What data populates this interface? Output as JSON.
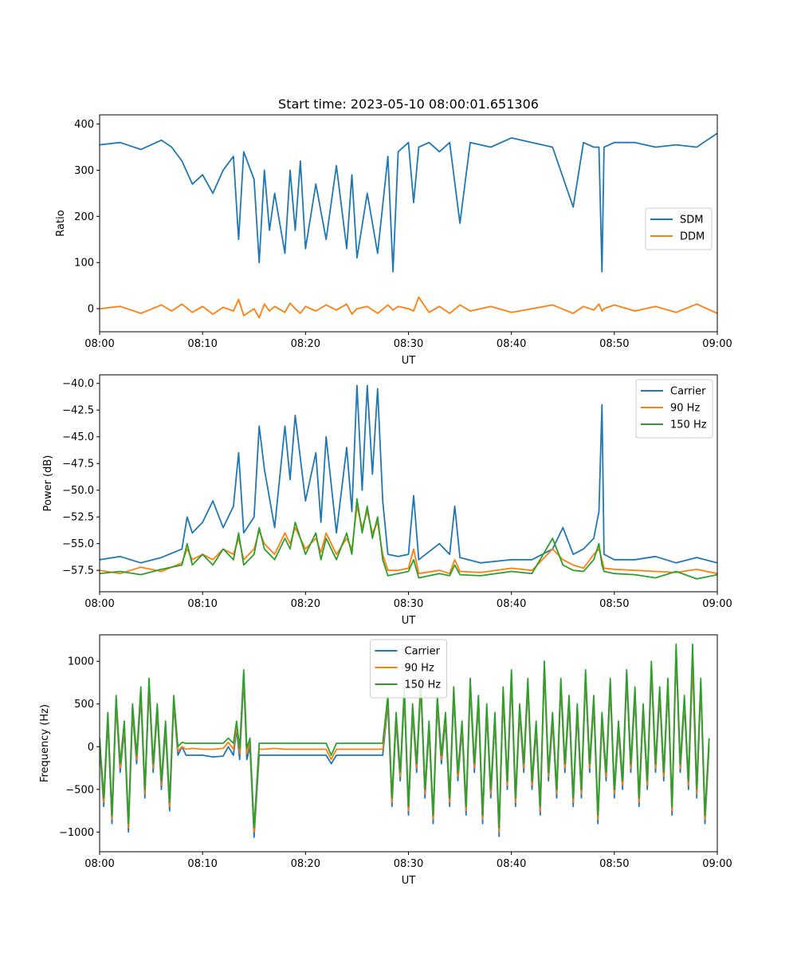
{
  "figure": {
    "title": "Start time: 2023-05-10 08:00:01.651306"
  },
  "chart_data": [
    {
      "type": "line",
      "xlabel": "UT",
      "ylabel": "Ratio",
      "x_range": [
        "08:00",
        "09:00"
      ],
      "x_ticks": [
        "08:00",
        "08:10",
        "08:20",
        "08:30",
        "08:40",
        "08:50",
        "09:00"
      ],
      "ylim": [
        -50,
        420
      ],
      "y_ticks": [
        0,
        100,
        200,
        300,
        400
      ],
      "y_tick_labels": [
        "0",
        "100",
        "200",
        "300",
        "400"
      ],
      "legend_position": "center-right",
      "grid": false,
      "x_minutes": [
        0,
        2,
        4,
        6,
        7,
        8,
        9,
        10,
        11,
        12,
        13,
        13.5,
        14,
        15,
        15.5,
        16,
        16.5,
        17,
        18,
        18.5,
        19,
        19.5,
        20,
        21,
        22,
        23,
        24,
        24.5,
        25,
        26,
        27,
        28,
        28.5,
        29,
        30,
        30.5,
        31,
        32,
        33,
        34,
        35,
        36,
        38,
        40,
        42,
        44,
        46,
        47,
        48,
        48.5,
        48.8,
        49,
        50,
        52,
        54,
        56,
        58,
        60
      ],
      "series": [
        {
          "name": "SDM",
          "color": "#1f77b4",
          "values": [
            355,
            360,
            345,
            365,
            350,
            320,
            270,
            290,
            250,
            300,
            330,
            150,
            340,
            280,
            100,
            300,
            170,
            250,
            120,
            300,
            170,
            320,
            130,
            270,
            150,
            310,
            130,
            290,
            110,
            250,
            120,
            330,
            80,
            340,
            360,
            230,
            350,
            360,
            340,
            360,
            185,
            360,
            350,
            370,
            360,
            350,
            220,
            360,
            350,
            350,
            80,
            350,
            360,
            360,
            350,
            355,
            350,
            380
          ]
        },
        {
          "name": "DDM",
          "color": "#ff7f0e",
          "values": [
            0,
            5,
            -10,
            8,
            -5,
            10,
            -8,
            5,
            -12,
            3,
            -5,
            20,
            -15,
            0,
            -20,
            10,
            -5,
            5,
            -8,
            12,
            0,
            -10,
            5,
            -5,
            8,
            -3,
            10,
            -12,
            0,
            5,
            -10,
            8,
            -3,
            5,
            0,
            -5,
            25,
            -8,
            5,
            -10,
            8,
            -5,
            5,
            -8,
            0,
            8,
            -10,
            5,
            -3,
            10,
            -5,
            0,
            8,
            -5,
            5,
            -8,
            10,
            -10
          ]
        }
      ]
    },
    {
      "type": "line",
      "xlabel": "UT",
      "ylabel": "Power (dB)",
      "x_range": [
        "08:00",
        "09:00"
      ],
      "x_ticks": [
        "08:00",
        "08:10",
        "08:20",
        "08:30",
        "08:40",
        "08:50",
        "09:00"
      ],
      "ylim": [
        -59.5,
        -39.2
      ],
      "y_ticks": [
        -40.0,
        -42.5,
        -45.0,
        -47.5,
        -50.0,
        -52.5,
        -55.0,
        -57.5
      ],
      "y_tick_labels": [
        "−40.0",
        "−42.5",
        "−45.0",
        "−47.5",
        "−50.0",
        "−52.5",
        "−55.0",
        "−57.5"
      ],
      "legend_position": "upper-right",
      "grid": false,
      "x_minutes": [
        0,
        2,
        4,
        6,
        8,
        8.5,
        9,
        10,
        11,
        12,
        13,
        13.5,
        14,
        15,
        15.5,
        16,
        17,
        18,
        18.5,
        19,
        20,
        21,
        21.5,
        22,
        23,
        24,
        24.5,
        25,
        25.5,
        26,
        26.5,
        27,
        27.5,
        28,
        29,
        30,
        30.5,
        31,
        33,
        34,
        34.5,
        35,
        37,
        40,
        42,
        44,
        45,
        46,
        47,
        48,
        48.5,
        48.8,
        49,
        50,
        52,
        54,
        56,
        58,
        60
      ],
      "series": [
        {
          "name": "Carrier",
          "color": "#1f77b4",
          "values": [
            -56.5,
            -56.2,
            -56.8,
            -56.3,
            -55.5,
            -52.5,
            -54.0,
            -53.0,
            -51.0,
            -53.5,
            -51.5,
            -46.5,
            -54.0,
            -52.5,
            -44.0,
            -48.0,
            -53.5,
            -44.0,
            -49.0,
            -43.0,
            -51.0,
            -46.5,
            -53.0,
            -45.0,
            -54.0,
            -46.0,
            -52.0,
            -40.2,
            -50.0,
            -40.2,
            -48.5,
            -40.5,
            -51.0,
            -56.0,
            -56.2,
            -56.0,
            -50.5,
            -56.5,
            -55.0,
            -56.0,
            -51.5,
            -56.3,
            -56.8,
            -56.5,
            -56.5,
            -55.5,
            -53.5,
            -56.0,
            -55.5,
            -54.5,
            -52.0,
            -42.0,
            -56.0,
            -56.5,
            -56.5,
            -56.2,
            -56.8,
            -56.3,
            -56.8
          ]
        },
        {
          "name": "90 Hz",
          "color": "#ff7f0e",
          "values": [
            -57.5,
            -57.8,
            -57.2,
            -57.6,
            -56.8,
            -55.5,
            -56.5,
            -56.0,
            -56.5,
            -55.5,
            -56.0,
            -54.5,
            -56.5,
            -55.5,
            -53.8,
            -55.0,
            -56.0,
            -54.0,
            -55.0,
            -53.5,
            -55.5,
            -54.5,
            -55.8,
            -54.0,
            -56.0,
            -54.5,
            -55.5,
            -51.5,
            -53.5,
            -52.0,
            -54.0,
            -53.0,
            -56.0,
            -57.5,
            -57.5,
            -57.3,
            -55.5,
            -57.8,
            -57.5,
            -57.8,
            -56.5,
            -57.6,
            -57.7,
            -57.3,
            -57.5,
            -55.5,
            -56.5,
            -57.0,
            -57.3,
            -56.0,
            -55.5,
            -56.5,
            -57.3,
            -57.4,
            -57.5,
            -57.6,
            -57.7,
            -57.4,
            -57.8
          ]
        },
        {
          "name": "150 Hz",
          "color": "#2ca02c",
          "values": [
            -57.8,
            -57.6,
            -57.9,
            -57.4,
            -57.0,
            -55.0,
            -57.0,
            -56.0,
            -57.0,
            -55.5,
            -56.5,
            -54.0,
            -57.0,
            -56.0,
            -53.5,
            -55.5,
            -56.5,
            -54.5,
            -55.5,
            -53.0,
            -56.0,
            -54.0,
            -56.5,
            -54.5,
            -56.5,
            -54.0,
            -56.0,
            -50.8,
            -54.0,
            -51.5,
            -54.5,
            -52.5,
            -56.5,
            -58.0,
            -57.8,
            -57.6,
            -56.5,
            -58.2,
            -57.8,
            -58.0,
            -57.0,
            -57.9,
            -58.0,
            -57.6,
            -57.8,
            -54.5,
            -57.0,
            -57.5,
            -57.6,
            -56.5,
            -55.0,
            -57.0,
            -57.6,
            -57.8,
            -57.9,
            -58.2,
            -57.6,
            -58.3,
            -57.9
          ]
        }
      ]
    },
    {
      "type": "line",
      "xlabel": "UT",
      "ylabel": "Frequency (Hz)",
      "x_range": [
        "08:00",
        "09:00"
      ],
      "x_ticks": [
        "08:00",
        "08:10",
        "08:20",
        "08:30",
        "08:40",
        "08:50",
        "09:00"
      ],
      "ylim": [
        -1230,
        1310
      ],
      "y_ticks": [
        1000,
        500,
        0,
        -500,
        -1000
      ],
      "y_tick_labels": [
        "1000",
        "500",
        "0",
        "−500",
        "−1000"
      ],
      "legend_position": "upper-center",
      "grid": false,
      "x_minutes": [
        0,
        0.4,
        0.8,
        1.2,
        1.6,
        2.0,
        2.4,
        2.8,
        3.2,
        3.6,
        4.0,
        4.4,
        4.8,
        5.2,
        5.6,
        6.0,
        6.4,
        6.8,
        7.2,
        7.6,
        8.0,
        8.4,
        9,
        10,
        11,
        12,
        12.5,
        13,
        13.3,
        13.6,
        14,
        14.3,
        14.6,
        15,
        15.5,
        16,
        17,
        18,
        20,
        22,
        22.5,
        23,
        24,
        26,
        27,
        27.5,
        28,
        28.4,
        28.8,
        29.2,
        29.6,
        30,
        30.4,
        30.8,
        31.2,
        31.6,
        32,
        32.4,
        32.8,
        33.2,
        33.6,
        34,
        34.4,
        34.8,
        35.2,
        35.6,
        36,
        36.4,
        36.8,
        37.2,
        37.6,
        38,
        38.4,
        38.8,
        39.2,
        39.6,
        40,
        40.4,
        40.8,
        41.2,
        41.6,
        42,
        42.4,
        42.8,
        43.2,
        43.6,
        44,
        44.4,
        44.8,
        45.2,
        45.6,
        46,
        46.4,
        46.8,
        47.2,
        47.6,
        48,
        48.4,
        48.8,
        49.2,
        49.6,
        50,
        50.4,
        50.8,
        51.2,
        51.6,
        52,
        52.4,
        52.8,
        53.2,
        53.6,
        54,
        54.4,
        54.8,
        55.2,
        55.6,
        56,
        56.4,
        56.8,
        57.2,
        57.6,
        58,
        58.4,
        58.8,
        59.2,
        59.6,
        60
      ],
      "series": [
        {
          "name": "Carrier",
          "color": "#1f77b4",
          "values": [
            0,
            -700,
            300,
            -900,
            500,
            -300,
            200,
            -1000,
            400,
            -200,
            600,
            -600,
            700,
            -300,
            400,
            -500,
            200,
            -750,
            500,
            -100,
            0,
            -100,
            -100,
            -100,
            -120,
            -110,
            0,
            -100,
            200,
            -150,
            800,
            -150,
            0,
            -1060,
            -100,
            -100,
            -100,
            -100,
            -100,
            -100,
            -200,
            -100,
            -100,
            -100,
            -100,
            -100,
            500,
            -700,
            300,
            -400,
            600,
            -800,
            400,
            -300,
            700,
            -600,
            200,
            -900,
            500,
            -200,
            300,
            -700,
            600,
            -400,
            200,
            -800,
            700,
            -300,
            500,
            -900,
            400,
            -600,
            300,
            -1050,
            600,
            -500,
            800,
            -700,
            400,
            -300,
            700,
            -500,
            200,
            -800,
            900,
            -400,
            300,
            -600,
            700,
            -300,
            500,
            -700,
            400,
            -600,
            800,
            -300,
            500,
            -900,
            300,
            -400,
            700,
            -600,
            200,
            -500,
            800,
            -300,
            600,
            -700,
            400,
            -500,
            900,
            -300,
            600,
            -400,
            700,
            -800,
            1100,
            -300,
            500,
            -500,
            1000,
            -600,
            700,
            -900,
            0
          ]
        },
        {
          "name": "90 Hz",
          "color": "#ff7f0e",
          "values": [
            50,
            -650,
            350,
            -850,
            550,
            -250,
            250,
            -950,
            450,
            -150,
            650,
            -550,
            750,
            -250,
            450,
            -450,
            250,
            -700,
            550,
            -50,
            0,
            -30,
            -20,
            -30,
            -30,
            -20,
            50,
            -30,
            250,
            -80,
            850,
            -80,
            50,
            -1000,
            -30,
            -30,
            -20,
            -30,
            -30,
            -30,
            -150,
            -30,
            -30,
            -30,
            -30,
            -30,
            550,
            -650,
            350,
            -350,
            650,
            -750,
            450,
            -250,
            750,
            -550,
            250,
            -850,
            550,
            -150,
            350,
            -650,
            650,
            -350,
            250,
            -750,
            750,
            -250,
            550,
            -850,
            450,
            -550,
            350,
            -1000,
            650,
            -450,
            850,
            -650,
            450,
            -250,
            750,
            -450,
            250,
            -750,
            950,
            -350,
            350,
            -550,
            750,
            -250,
            550,
            -650,
            450,
            -550,
            850,
            -250,
            550,
            -850,
            350,
            -350,
            750,
            -550,
            250,
            -450,
            850,
            -250,
            650,
            -650,
            450,
            -450,
            950,
            -250,
            650,
            -350,
            750,
            -750,
            1150,
            -250,
            550,
            -450,
            1050,
            -550,
            750,
            -850,
            50
          ]
        },
        {
          "name": "150 Hz",
          "color": "#2ca02c",
          "values": [
            100,
            -600,
            400,
            -800,
            600,
            -200,
            300,
            -900,
            500,
            -100,
            700,
            -500,
            800,
            -200,
            500,
            -400,
            300,
            -650,
            600,
            0,
            50,
            40,
            40,
            40,
            40,
            40,
            100,
            40,
            300,
            -20,
            900,
            -20,
            100,
            -950,
            40,
            40,
            40,
            40,
            40,
            40,
            -100,
            40,
            40,
            40,
            40,
            40,
            600,
            -600,
            400,
            -300,
            700,
            -700,
            500,
            -200,
            800,
            -500,
            300,
            -800,
            600,
            -100,
            400,
            -600,
            700,
            -300,
            300,
            -700,
            800,
            -200,
            600,
            -800,
            500,
            -500,
            400,
            -950,
            700,
            -400,
            900,
            -600,
            500,
            -200,
            800,
            -400,
            300,
            -700,
            1000,
            -300,
            400,
            -500,
            800,
            -200,
            600,
            -600,
            500,
            -500,
            900,
            -200,
            600,
            -800,
            400,
            -300,
            800,
            -500,
            300,
            -400,
            900,
            -200,
            700,
            -600,
            500,
            -400,
            1000,
            -200,
            700,
            -300,
            800,
            -700,
            1200,
            -200,
            600,
            -400,
            1200,
            -500,
            800,
            -800,
            100
          ]
        }
      ]
    }
  ]
}
